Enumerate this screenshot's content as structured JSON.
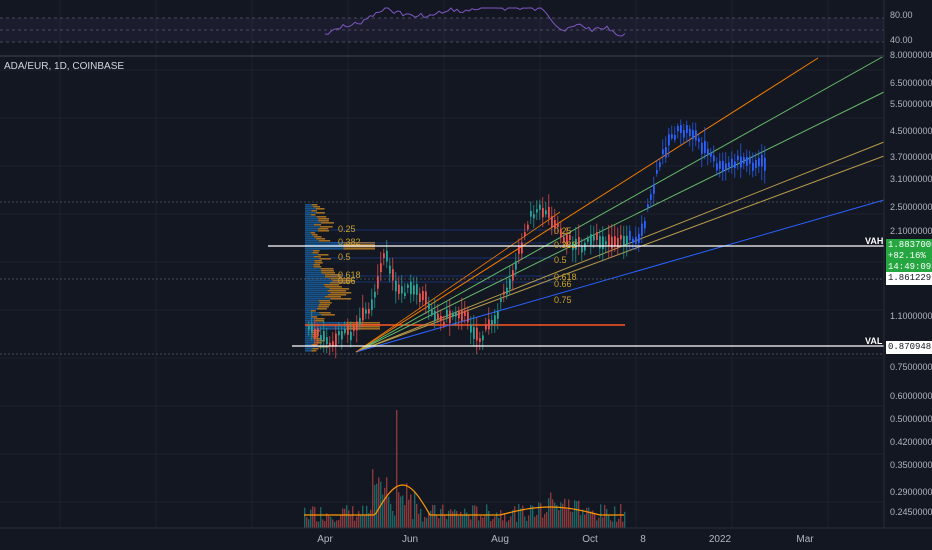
{
  "symbol": "ADA/EUR, 1D, COINBASE",
  "rsi_axis": [
    "80.00",
    "40.00"
  ],
  "price_axis": [
    "8.00000000",
    "6.50000000",
    "5.50000000",
    "4.50000000",
    "3.70000000",
    "3.10000000",
    "2.50000000",
    "2.10000000",
    "1.10000000",
    "0.75000000",
    "0.60000000",
    "0.50000000",
    "0.42000000",
    "0.35000000",
    "0.29000000",
    "0.24500000"
  ],
  "time_axis": [
    "Apr",
    "Jun",
    "Aug",
    "Oct",
    "8",
    "2022",
    "Mar"
  ],
  "tags": {
    "current_price": "1.88370000",
    "change": "+82.16%",
    "countdown": "14:49:09",
    "vah_price": "1.86122956",
    "val_price": "0.87094894",
    "vah_label": "VAH",
    "val_label": "VAL"
  },
  "fib_left": [
    "0.25",
    "0.382",
    "0.5",
    "0.618",
    "0.66"
  ],
  "fib_right": [
    "0.25",
    "0.382",
    "0.5",
    "0.618",
    "0.66",
    "0.75"
  ],
  "colors": {
    "background": "#131722",
    "up": "#26a69a",
    "down": "#ef5350",
    "recent": "#2962ff",
    "rsi": "#7e57c2",
    "volume_ma": "#ff9800",
    "fan_orange": "#f57c00",
    "fan_green": "#66bb6a",
    "fan_khaki": "#b59a4a",
    "fan_blue": "#2962ff",
    "profile_blue": "#1e88e5",
    "profile_orange": "#ffa726",
    "poc": "#ff5722"
  }
}
